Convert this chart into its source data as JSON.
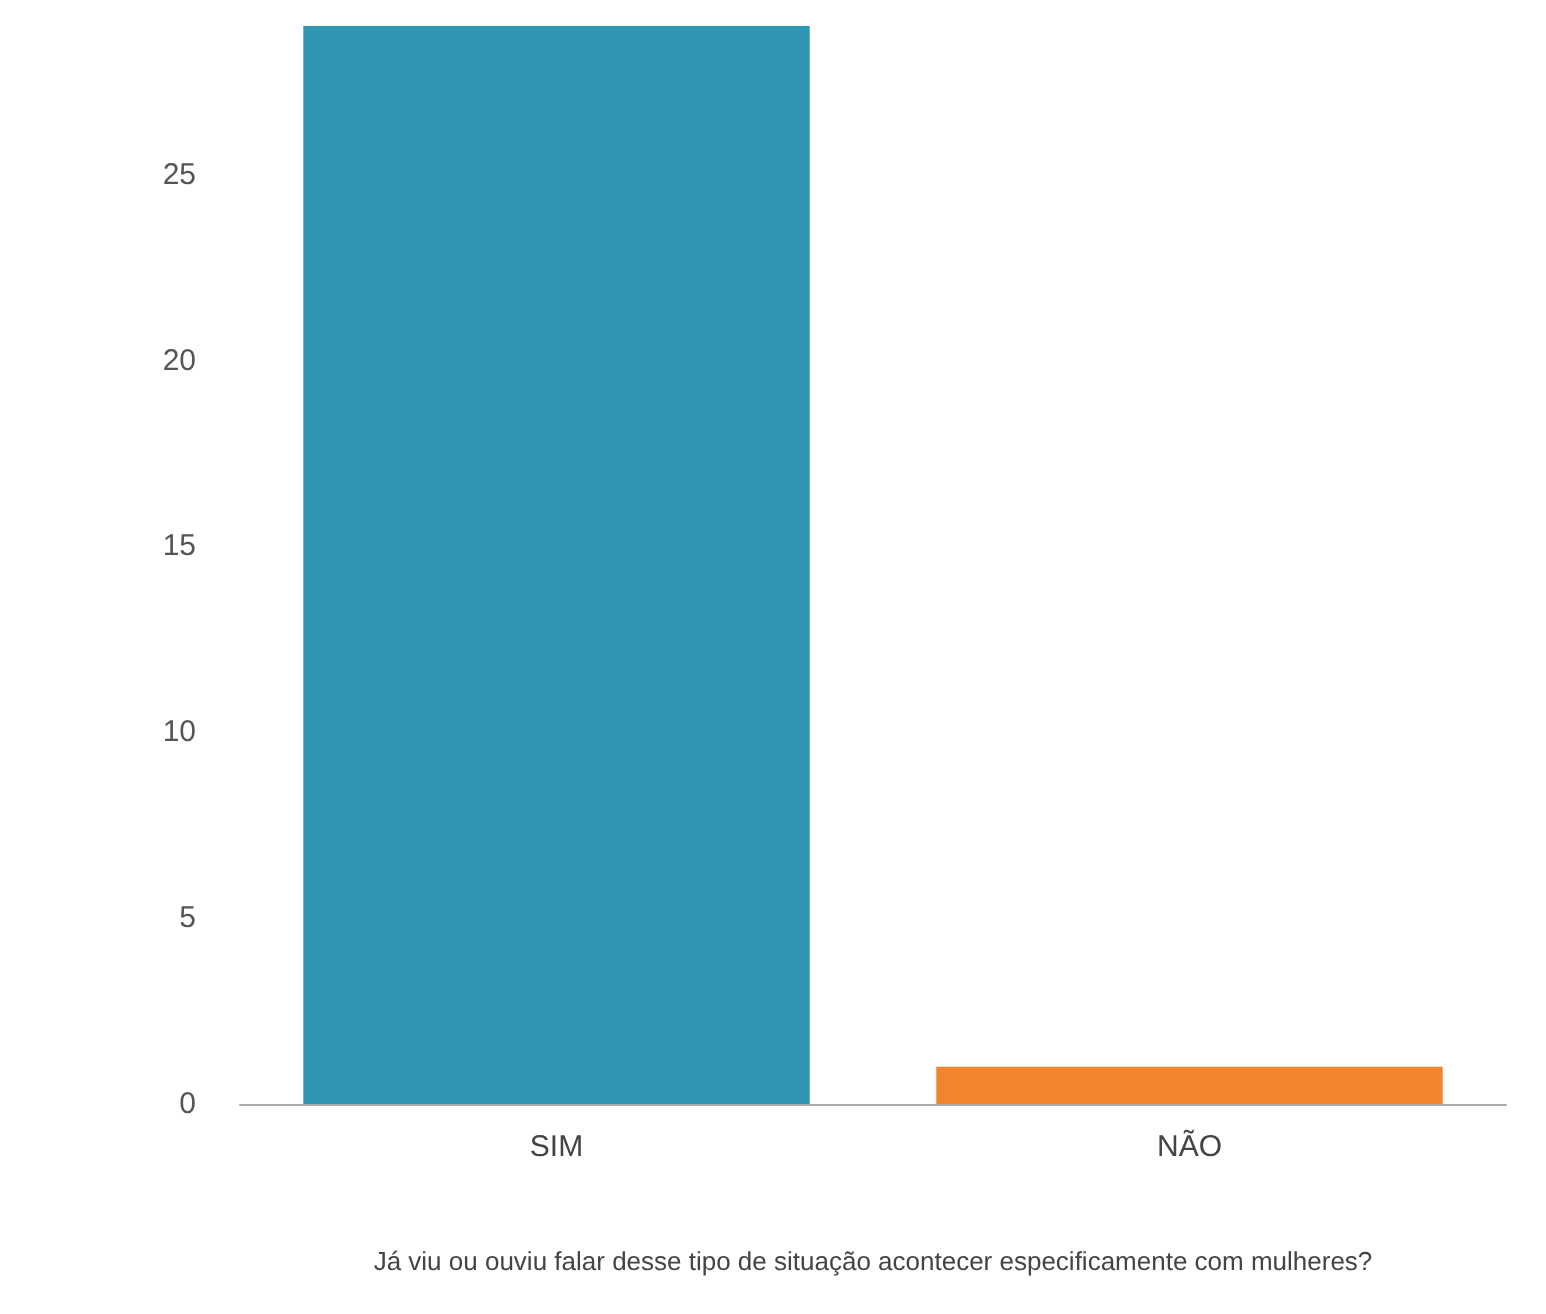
{
  "chart_data": {
    "type": "bar",
    "categories": [
      "SIM",
      "NÃO"
    ],
    "series": [
      {
        "values": [
          29,
          1
        ],
        "colors": [
          "#2f96b4",
          "#f0852d"
        ]
      }
    ],
    "xlabel": "Já viu ou ouviu falar desse tipo de situação acontecer especificamente com mulheres?",
    "ylim": [
      0,
      29
    ],
    "yticks": [
      0,
      5,
      10,
      15,
      20,
      25
    ]
  }
}
